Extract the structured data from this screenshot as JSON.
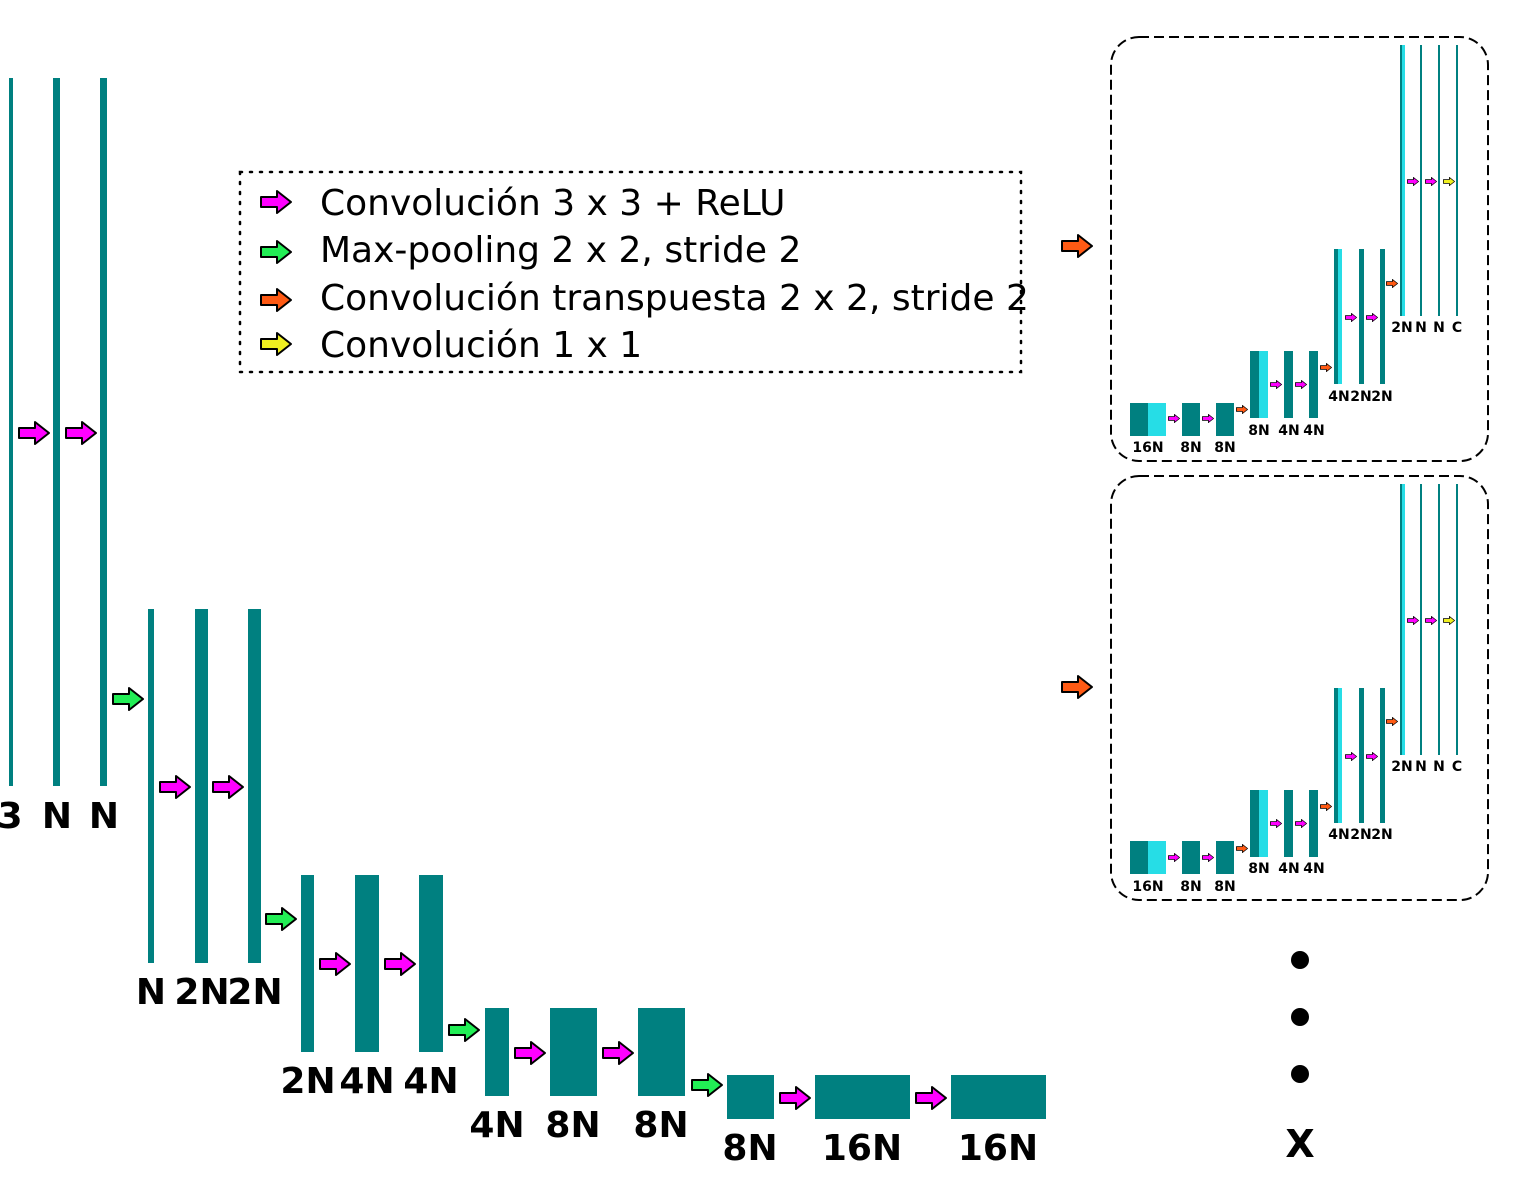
{
  "legend": {
    "items": [
      {
        "color": "#ff00ff",
        "text": "Convolución 3 x 3 + ReLU"
      },
      {
        "color": "#22ee55",
        "text": "Max-pooling 2 x 2, stride 2"
      },
      {
        "color": "#ff5a14",
        "text": "Convolución transpuesta 2 x 2, stride 2"
      },
      {
        "color": "#f0f020",
        "text": "Convolución 1 x 1"
      }
    ]
  },
  "encoder": {
    "level1": [
      "3",
      "N",
      "N"
    ],
    "level2": [
      "N",
      "2N",
      "2N"
    ],
    "level3": [
      "2N",
      "4N",
      "4N"
    ],
    "level4": [
      "4N",
      "8N",
      "8N"
    ],
    "level5": [
      "8N",
      "16N",
      "16N"
    ]
  },
  "decoders": [
    {
      "stage1": [
        "16N",
        "8N",
        "8N"
      ],
      "stage2": [
        "8N",
        "4N",
        "4N"
      ],
      "stage3": [
        "4N",
        "2N",
        "2N"
      ],
      "stage4": [
        "2N",
        "N",
        "N",
        "C"
      ]
    },
    {
      "stage1": [
        "16N",
        "8N",
        "8N"
      ],
      "stage2": [
        "8N",
        "4N",
        "4N"
      ],
      "stage3": [
        "4N",
        "2N",
        "2N"
      ],
      "stage4": [
        "2N",
        "N",
        "N",
        "C"
      ]
    }
  ],
  "decoder_count_label": "X",
  "colors": {
    "feature_map": "#008080",
    "concat_map": "#26dde6",
    "conv": "#ff00ff",
    "pool": "#22ee55",
    "upconv": "#ff5a14",
    "conv1x1": "#f0f020"
  }
}
